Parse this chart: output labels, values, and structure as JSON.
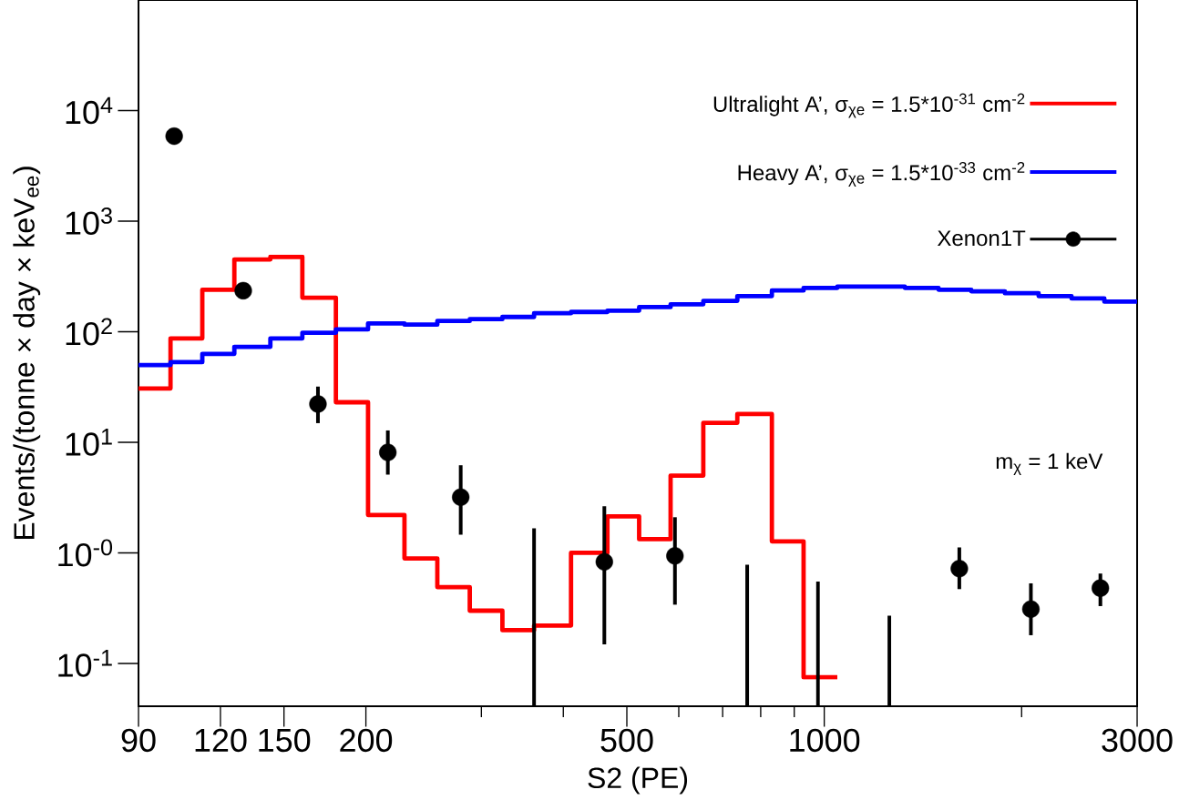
{
  "chart_data": {
    "type": "line",
    "xlabel": "S2 (PE)",
    "ylabel": "Events/(tonne × day × keV$_{ee}$)",
    "annotations": [
      "m$_{χ}$ = 1 keV"
    ],
    "log": "xy",
    "grid": false,
    "legend": "top right",
    "xlim": [
      90,
      3000
    ],
    "ylim": [
      0.041,
      100000
    ],
    "xticks": [
      90,
      120,
      150,
      200,
      {
        "value": 300,
        "label": null
      },
      {
        "value": 400,
        "label": null
      },
      500,
      {
        "value": 600,
        "label": null
      },
      {
        "value": 700,
        "label": null
      },
      {
        "value": 800,
        "label": null
      },
      {
        "value": 900,
        "label": null
      },
      1000,
      {
        "value": 2000,
        "label": null
      },
      3000
    ],
    "yticks": [
      {
        "value": 0.1,
        "label": "10$^{-1}$"
      },
      {
        "value": 1,
        "label": "10$^{-0}$"
      },
      {
        "value": 10,
        "label": "10$^{1}$"
      },
      {
        "value": 100,
        "label": "10$^{2}$"
      },
      {
        "value": 1000,
        "label": "10$^{3}$"
      },
      {
        "value": 10000,
        "label": "10$^{4}$"
      }
    ],
    "series": [
      {
        "name": "Ultralight A’, σ$_{χe}$ = 1.5*10$^{-31}$ cm$^{-2}$",
        "type": "histogram",
        "color": "#ff0000",
        "bins": [
          90,
          100.7,
          112.6,
          126,
          143,
          160,
          180,
          201.5,
          229,
          257,
          288,
          323,
          361,
          411,
          467,
          522,
          583,
          654,
          737,
          832,
          930,
          1047
        ],
        "values": [
          30.7,
          87,
          240,
          450,
          475,
          203,
          23,
          2.2,
          0.89,
          0.49,
          0.3,
          0.2,
          0.22,
          1.0,
          2.14,
          1.33,
          5.0,
          15,
          18,
          1.27,
          0.075
        ]
      },
      {
        "name": "Heavy A’, σ$_{χe}$ = 1.5*10$^{-33}$ cm$^{-2}$",
        "type": "histogram",
        "color": "#0000ff",
        "bins": [
          90,
          100.7,
          112.6,
          126,
          143,
          160,
          180,
          201.5,
          229,
          257,
          288,
          323,
          361,
          411,
          467,
          522,
          583,
          654,
          737,
          832,
          930,
          1047,
          1178,
          1327,
          1494,
          1676,
          1886,
          2123,
          2383,
          2674,
          3000
        ],
        "values": [
          50,
          53,
          63,
          73,
          87,
          98,
          105,
          119,
          116,
          125,
          130,
          136,
          147,
          151,
          155,
          167,
          177,
          190,
          210,
          236,
          249,
          256,
          256,
          249,
          240,
          232,
          223,
          210,
          200,
          187
        ]
      },
      {
        "name": "Xenon1T",
        "type": "scatter",
        "marker": "circle",
        "color": "#000000",
        "x": [
          102,
          130,
          169,
          216,
          279,
          462,
          592,
          1607,
          2066,
          2637
        ],
        "values": [
          5870,
          235,
          22.2,
          8.1,
          3.19,
          0.83,
          0.94,
          0.72,
          0.31,
          0.48
        ],
        "errors": [
          null,
          null,
          [
            14.9,
            31.9
          ],
          [
            5.1,
            12.8
          ],
          [
            1.46,
            6.2
          ],
          [
            0.149,
            2.64
          ],
          [
            0.34,
            2.1
          ],
          [
            0.47,
            1.12
          ],
          [
            0.18,
            0.53
          ],
          [
            0.33,
            0.65
          ]
        ]
      },
      {
        "color": "#000000",
        "x": [
          361,
          361
        ],
        "values": [
          0.041,
          1.67
        ]
      },
      {
        "color": "#000000",
        "x": [
          763,
          763
        ],
        "values": [
          0.041,
          0.78
        ]
      },
      {
        "color": "#000000",
        "x": [
          978,
          978
        ],
        "values": [
          0.041,
          0.55
        ]
      },
      {
        "color": "#000000",
        "x": [
          1257,
          1257
        ],
        "values": [
          0.041,
          0.27
        ]
      }
    ]
  }
}
